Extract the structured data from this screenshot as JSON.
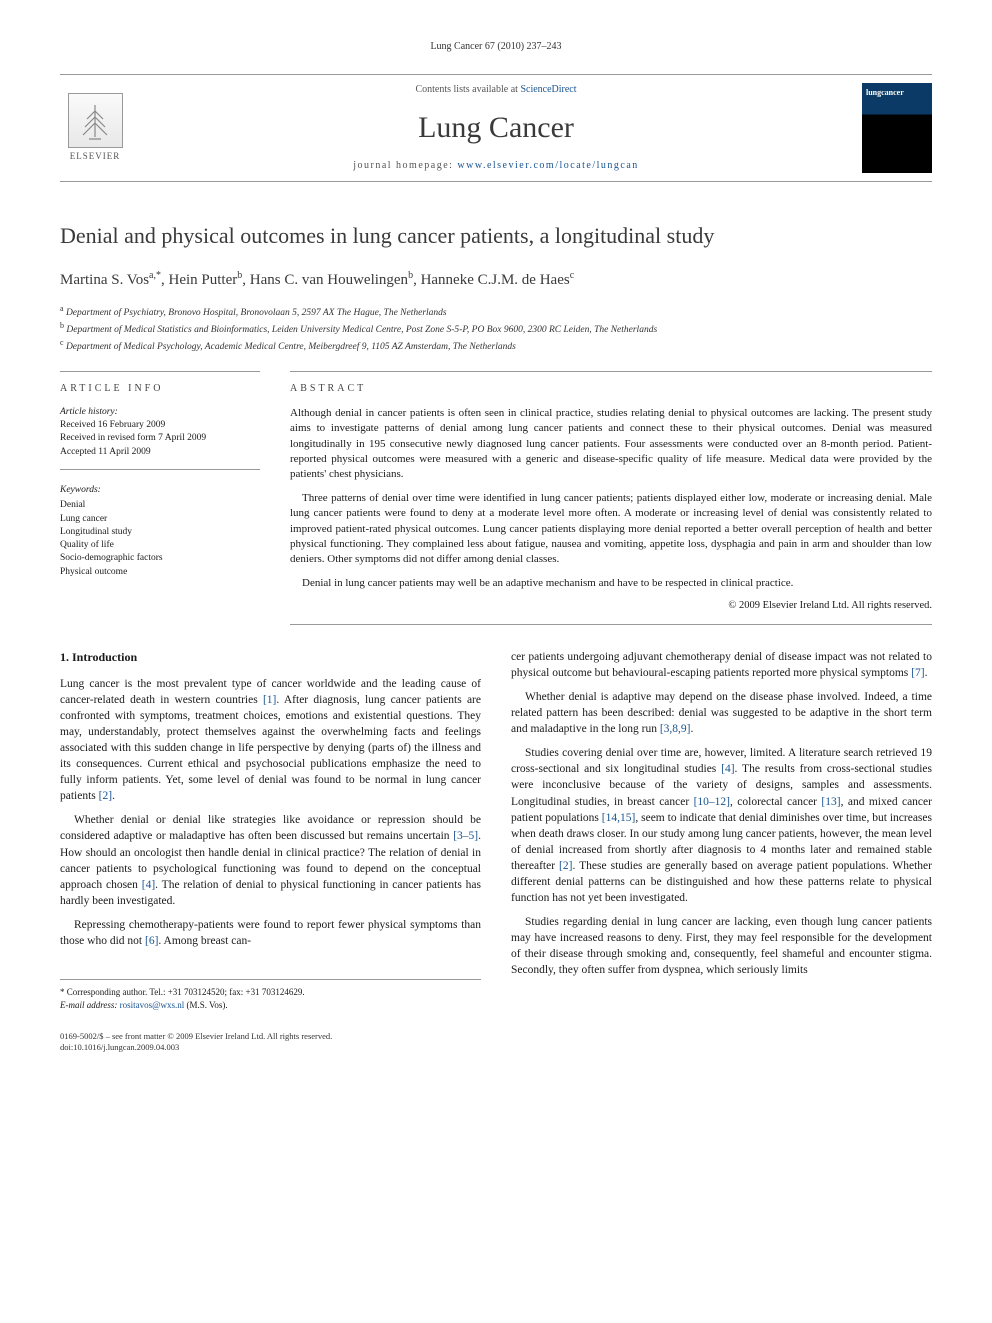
{
  "running_head": "Lung Cancer 67 (2010) 237–243",
  "journal_box": {
    "contents_prefix": "Contents lists available at ",
    "contents_link": "ScienceDirect",
    "journal_name": "Lung Cancer",
    "homepage_prefix": "journal homepage: ",
    "homepage_url": "www.elsevier.com/locate/lungcan",
    "elsevier_label": "ELSEVIER",
    "cover_label": "lungcancer"
  },
  "article": {
    "title": "Denial and physical outcomes in lung cancer patients, a longitudinal study",
    "authors_html": "Martina S. Vos<sup>a,*</sup>, Hein Putter<sup>b</sup>, Hans C. van Houwelingen<sup>b</sup>, Hanneke C.J.M. de Haes<sup>c</sup>",
    "affiliations": [
      {
        "sup": "a",
        "text": "Department of Psychiatry, Bronovo Hospital, Bronovolaan 5, 2597 AX The Hague, The Netherlands"
      },
      {
        "sup": "b",
        "text": "Department of Medical Statistics and Bioinformatics, Leiden University Medical Centre, Post Zone S-5-P, PO Box 9600, 2300 RC Leiden, The Netherlands"
      },
      {
        "sup": "c",
        "text": "Department of Medical Psychology, Academic Medical Centre, Meibergdreef 9, 1105 AZ Amsterdam, The Netherlands"
      }
    ]
  },
  "info": {
    "heading": "article info",
    "history_label": "Article history:",
    "history": [
      "Received 16 February 2009",
      "Received in revised form 7 April 2009",
      "Accepted 11 April 2009"
    ],
    "keywords_label": "Keywords:",
    "keywords": [
      "Denial",
      "Lung cancer",
      "Longitudinal study",
      "Quality of life",
      "Socio-demographic factors",
      "Physical outcome"
    ]
  },
  "abstract": {
    "heading": "abstract",
    "paragraphs": [
      "Although denial in cancer patients is often seen in clinical practice, studies relating denial to physical outcomes are lacking. The present study aims to investigate patterns of denial among lung cancer patients and connect these to their physical outcomes. Denial was measured longitudinally in 195 consecutive newly diagnosed lung cancer patients. Four assessments were conducted over an 8-month period. Patient-reported physical outcomes were measured with a generic and disease-specific quality of life measure. Medical data were provided by the patients' chest physicians.",
      "Three patterns of denial over time were identified in lung cancer patients; patients displayed either low, moderate or increasing denial. Male lung cancer patients were found to deny at a moderate level more often. A moderate or increasing level of denial was consistently related to improved patient-rated physical outcomes. Lung cancer patients displaying more denial reported a better overall perception of health and better physical functioning. They complained less about fatigue, nausea and vomiting, appetite loss, dysphagia and pain in arm and shoulder than low deniers. Other symptoms did not differ among denial classes.",
      "Denial in lung cancer patients may well be an adaptive mechanism and have to be respected in clinical practice."
    ],
    "copyright": "© 2009 Elsevier Ireland Ltd. All rights reserved."
  },
  "body": {
    "section_heading": "1. Introduction",
    "left_paragraphs": [
      "Lung cancer is the most prevalent type of cancer worldwide and the leading cause of cancer-related death in western countries [1]. After diagnosis, lung cancer patients are confronted with symptoms, treatment choices, emotions and existential questions. They may, understandably, protect themselves against the overwhelming facts and feelings associated with this sudden change in life perspective by denying (parts of) the illness and its consequences. Current ethical and psychosocial publications emphasize the need to fully inform patients. Yet, some level of denial was found to be normal in lung cancer patients [2].",
      "Whether denial or denial like strategies like avoidance or repression should be considered adaptive or maladaptive has often been discussed but remains uncertain [3–5]. How should an oncologist then handle denial in clinical practice? The relation of denial in cancer patients to psychological functioning was found to depend on the conceptual approach chosen [4]. The relation of denial to physical functioning in cancer patients has hardly been investigated.",
      "Repressing chemotherapy-patients were found to report fewer physical symptoms than those who did not [6]. Among breast can-"
    ],
    "right_paragraphs": [
      "cer patients undergoing adjuvant chemotherapy denial of disease impact was not related to physical outcome but behavioural-escaping patients reported more physical symptoms [7].",
      "Whether denial is adaptive may depend on the disease phase involved. Indeed, a time related pattern has been described: denial was suggested to be adaptive in the short term and maladaptive in the long run [3,8,9].",
      "Studies covering denial over time are, however, limited. A literature search retrieved 19 cross-sectional and six longitudinal studies [4]. The results from cross-sectional studies were inconclusive because of the variety of designs, samples and assessments. Longitudinal studies, in breast cancer [10–12], colorectal cancer [13], and mixed cancer patient populations [14,15], seem to indicate that denial diminishes over time, but increases when death draws closer. In our study among lung cancer patients, however, the mean level of denial increased from shortly after diagnosis to 4 months later and remained stable thereafter [2]. These studies are generally based on average patient populations. Whether different denial patterns can be distinguished and how these patterns relate to physical function has not yet been investigated.",
      "Studies regarding denial in lung cancer are lacking, even though lung cancer patients may have increased reasons to deny. First, they may feel responsible for the development of their disease through smoking and, consequently, feel shameful and encounter stigma. Secondly, they often suffer from dyspnea, which seriously limits"
    ]
  },
  "corresponding": {
    "label": "* Corresponding author. Tel.: +31 703124520; fax: +31 703124629.",
    "email_label": "E-mail address:",
    "email": "rositavos@wxs.nl",
    "email_suffix": "(M.S. Vos)."
  },
  "footer": {
    "line1": "0169-5002/$ – see front matter © 2009 Elsevier Ireland Ltd. All rights reserved.",
    "line2": "doi:10.1016/j.lungcan.2009.04.003"
  },
  "colors": {
    "link": "#1a5490",
    "border": "#999999",
    "text": "#1a1a1a",
    "heading": "#3a3a3a"
  }
}
